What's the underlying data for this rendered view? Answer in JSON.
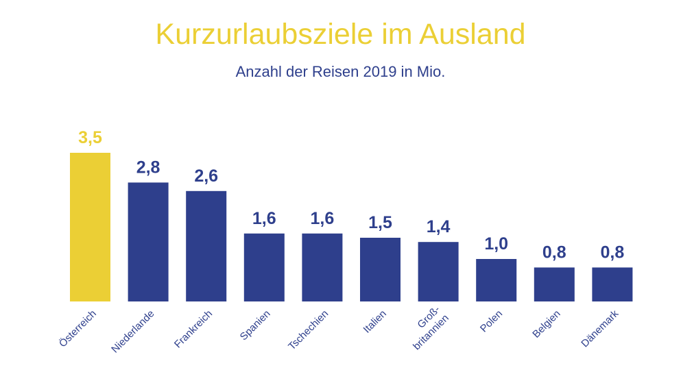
{
  "chart_data": {
    "type": "bar",
    "title": "Kurzurlaubsziele im Ausland",
    "subtitle": "Anzahl der Reisen 2019 in Mio.",
    "categories": [
      "Österreich",
      "Niederlande",
      "Frankreich",
      "Spanien",
      "Tschechien",
      "Italien",
      "Groß-\nbritannien",
      "Polen",
      "Belgien",
      "Dänemark"
    ],
    "values": [
      3.5,
      2.8,
      2.6,
      1.6,
      1.6,
      1.5,
      1.4,
      1.0,
      0.8,
      0.8
    ],
    "value_labels": [
      "3,5",
      "2,8",
      "2,6",
      "1,6",
      "1,6",
      "1,5",
      "1,4",
      "1,0",
      "0,8",
      "0,8"
    ],
    "highlight_index": 0,
    "ylim": [
      0,
      3.5
    ],
    "grid": false,
    "xlabel": "",
    "ylabel": ""
  },
  "colors": {
    "highlight": "#ebcf35",
    "bar": "#2e3f8c",
    "title": "#ebcf35",
    "text": "#2e3f8c"
  }
}
